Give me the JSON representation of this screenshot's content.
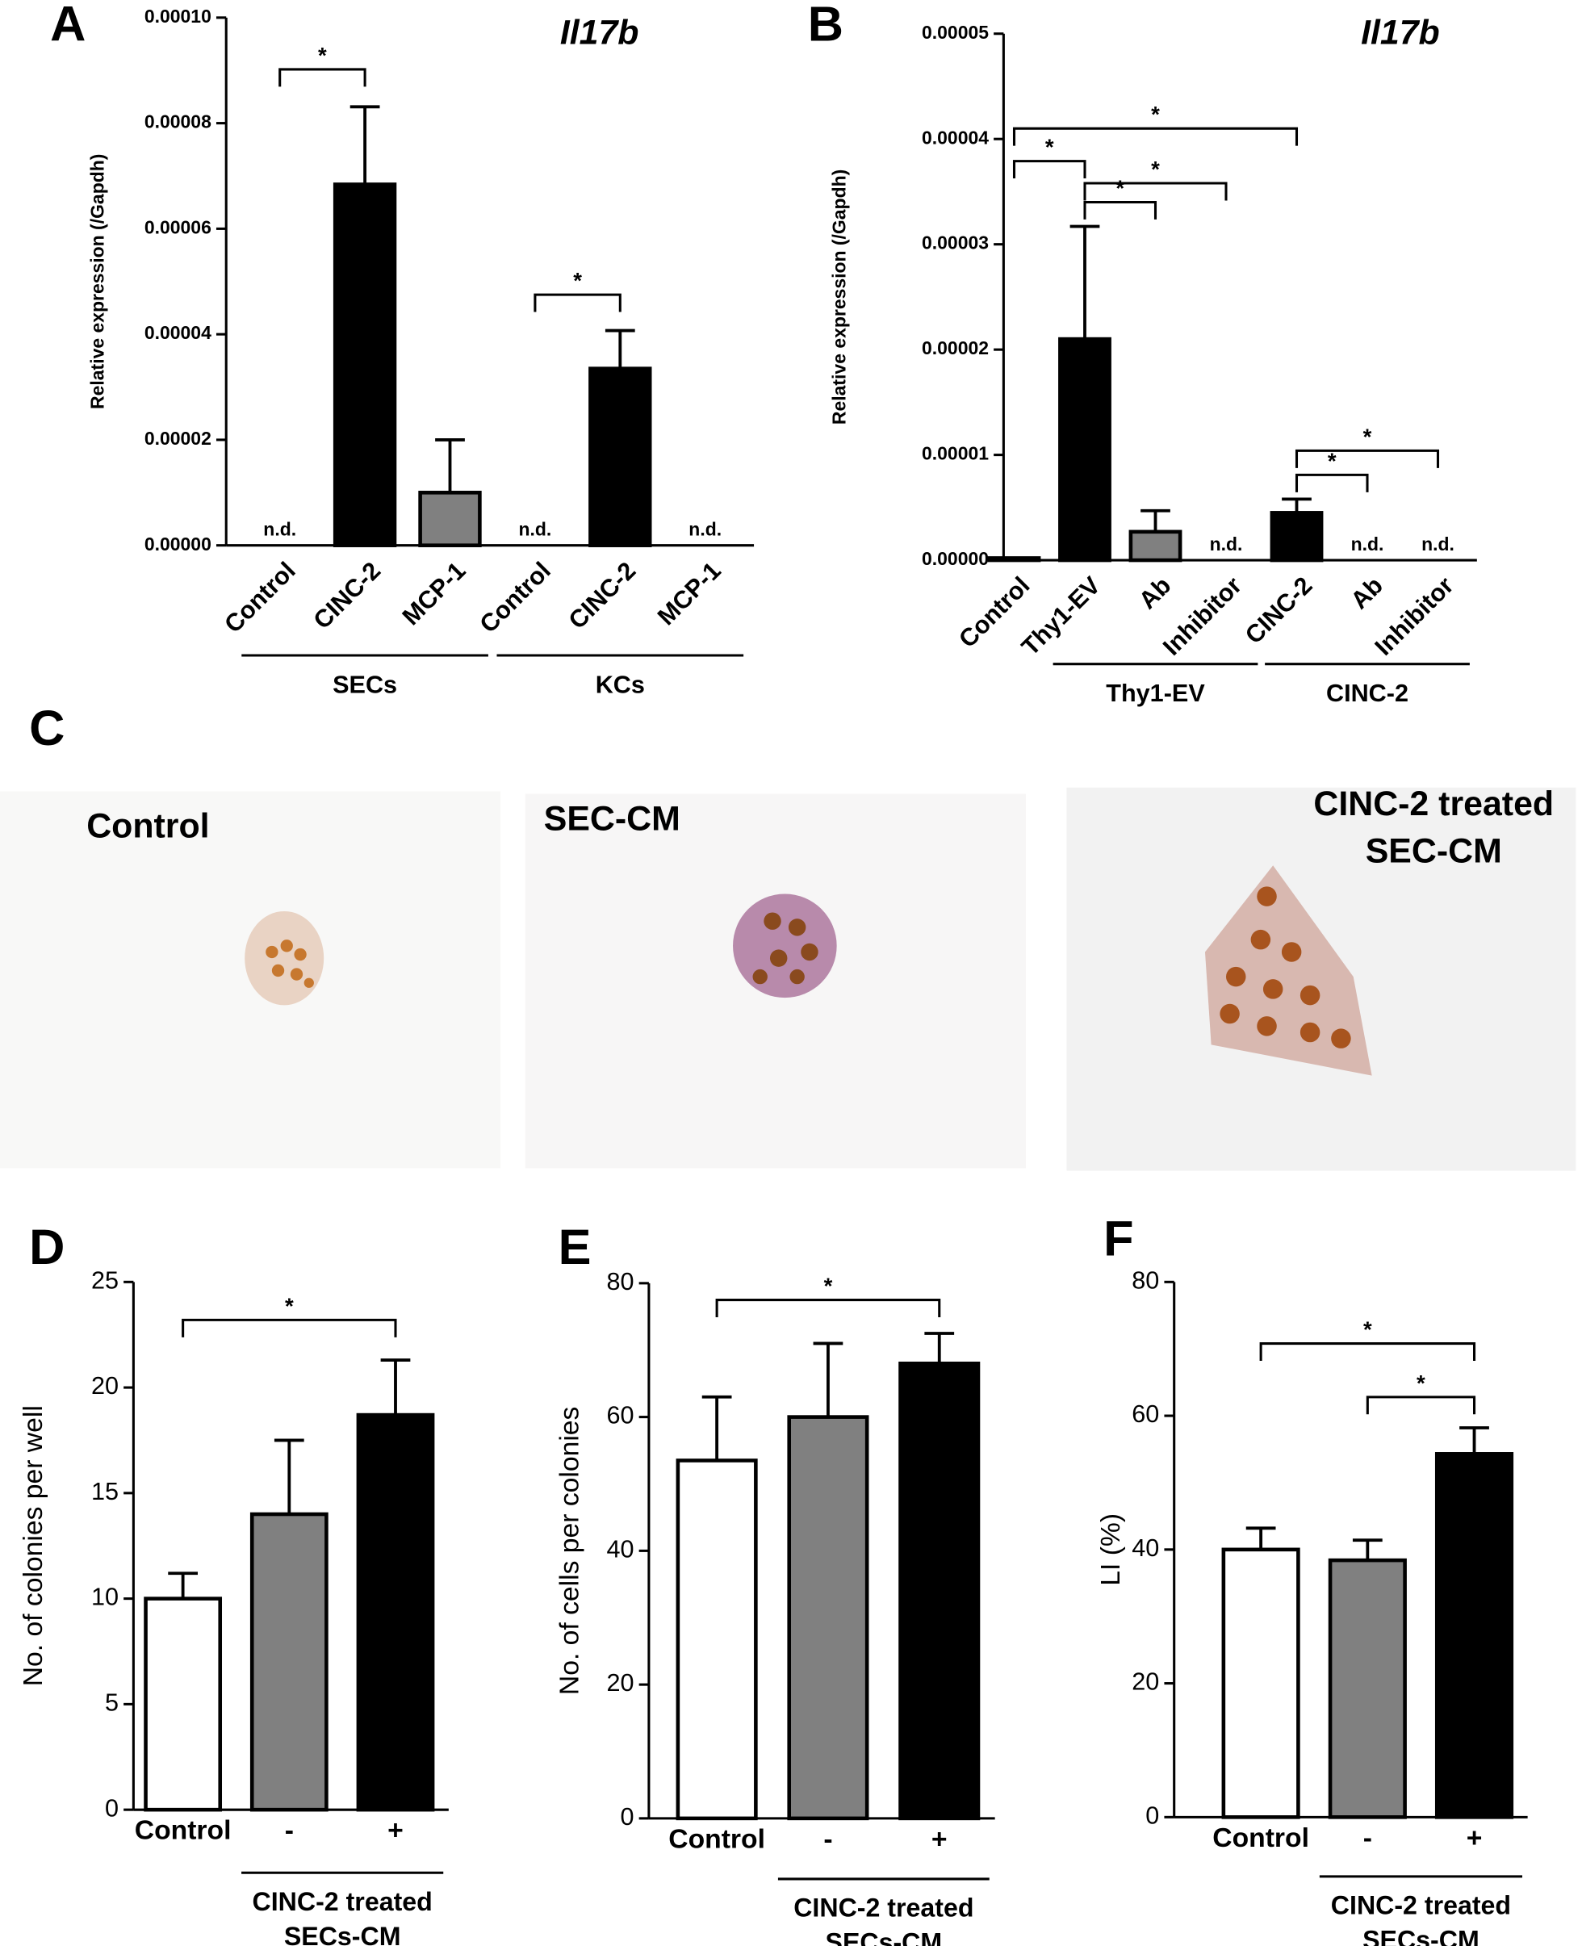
{
  "chart_data": [
    {
      "type": "bar",
      "panel": "A",
      "title": "Il17b",
      "y_label": "Relative expression (/Gapdh)",
      "categories": [
        "Control",
        "CINC-2",
        "MCP-1",
        "Control",
        "CINC-2",
        "MCP-1"
      ],
      "values": [
        null,
        6.84e-05,
        1e-05,
        null,
        3.35e-05,
        null
      ],
      "value_labels": [
        "n.d.",
        null,
        null,
        "n.d.",
        null,
        "n.d."
      ],
      "errors": [
        null,
        1.47e-05,
        1e-05,
        null,
        7.2e-06,
        null
      ],
      "colors": [
        "#000000",
        "#000000",
        "#808080",
        "#000000",
        "#000000",
        "#000000"
      ],
      "ylim": [
        0,
        0.0001
      ],
      "yticks": [
        {
          "value": 0,
          "label": "0.00000"
        },
        {
          "value": 2e-05,
          "label": "0.00002"
        },
        {
          "value": 4e-05,
          "label": "0.00004"
        },
        {
          "value": 6e-05,
          "label": "0.00006"
        },
        {
          "value": 8e-05,
          "label": "0.00008"
        },
        {
          "value": 0.0001,
          "label": "0.00010"
        }
      ],
      "groups": [
        {
          "label": [
            "SECs"
          ],
          "from": 0,
          "to": 2
        },
        {
          "label": [
            "KCs"
          ],
          "from": 3,
          "to": 5
        }
      ],
      "significance": [
        {
          "from": 0,
          "to": 1,
          "y": 9.02e-05,
          "label": "*"
        },
        {
          "from": 3,
          "to": 4,
          "y": 4.75e-05,
          "label": "*"
        }
      ]
    },
    {
      "type": "bar",
      "panel": "B",
      "title": "Il17b",
      "y_label": "Relative expression (/Gapdh)",
      "categories": [
        "Control",
        "Thy1-EV",
        "Ab",
        "Inhibitor",
        "CINC-2",
        "Ab",
        "Inhibitor"
      ],
      "values": [
        2e-07,
        2.1e-05,
        2.7e-06,
        null,
        4.5e-06,
        null,
        null
      ],
      "value_labels": [
        null,
        null,
        null,
        "n.d.",
        null,
        "n.d.",
        "n.d."
      ],
      "errors": [
        null,
        1.07e-05,
        2e-06,
        null,
        1.3e-06,
        null,
        null
      ],
      "colors": [
        "#000000",
        "#000000",
        "#808080",
        "#000000",
        "#000000",
        "#000000",
        "#000000"
      ],
      "ylim": [
        0,
        5e-05
      ],
      "yticks": [
        {
          "value": 0,
          "label": "0.00000"
        },
        {
          "value": 1e-05,
          "label": "0.00001"
        },
        {
          "value": 2e-05,
          "label": "0.00002"
        },
        {
          "value": 3e-05,
          "label": "0.00003"
        },
        {
          "value": 4e-05,
          "label": "0.00004"
        },
        {
          "value": 5e-05,
          "label": "0.00005"
        }
      ],
      "groups": [
        {
          "label": [
            "Thy1-EV"
          ],
          "from": 1,
          "to": 3
        },
        {
          "label": [
            "CINC-2"
          ],
          "from": 4,
          "to": 6
        }
      ],
      "significance": [
        {
          "from": 0,
          "to": 4,
          "y": 4.1e-05,
          "label": "*"
        },
        {
          "from": 0,
          "to": 1,
          "y": 3.79e-05,
          "label": "*"
        },
        {
          "from": 1,
          "to": 3,
          "y": 3.58e-05,
          "label": "*"
        },
        {
          "from": 1,
          "to": 2,
          "y": 3.4e-05,
          "label": "*"
        },
        {
          "from": 4,
          "to": 6,
          "y": 1.04e-05,
          "label": "*"
        },
        {
          "from": 4,
          "to": 5,
          "y": 8.1e-06,
          "label": "*"
        }
      ]
    },
    {
      "type": "bar",
      "panel": "D",
      "y_label": "No. of colonies per well",
      "categories": [
        "Control",
        "-",
        "+"
      ],
      "values": [
        10,
        14,
        18.7
      ],
      "errors": [
        1.2,
        3.5,
        2.6
      ],
      "colors": [
        "#ffffff",
        "#808080",
        "#000000"
      ],
      "ylim": [
        0,
        25
      ],
      "yticks": [
        0,
        5,
        10,
        15,
        20,
        25
      ],
      "groups": [
        {
          "label": [
            "CINC-2 treated",
            "SECs-CM"
          ],
          "from": 1,
          "to": 2
        }
      ],
      "significance": [
        {
          "from": 0,
          "to": 2,
          "y": 23.2,
          "label": "*"
        }
      ]
    },
    {
      "type": "bar",
      "panel": "E",
      "y_label": "No. of cells per colonies",
      "categories": [
        "Control",
        "-",
        "+"
      ],
      "values": [
        53.5,
        60,
        68
      ],
      "errors": [
        9.5,
        11,
        4.5
      ],
      "colors": [
        "#ffffff",
        "#808080",
        "#000000"
      ],
      "ylim": [
        0,
        80
      ],
      "yticks": [
        0,
        20,
        40,
        60,
        80
      ],
      "groups": [
        {
          "label": [
            "CINC-2 treated",
            "SECs-CM"
          ],
          "from": 1,
          "to": 2
        }
      ],
      "significance": [
        {
          "from": 0,
          "to": 2,
          "y": 77.5,
          "label": "*"
        }
      ]
    },
    {
      "type": "bar",
      "panel": "F",
      "y_label": "LI (%)",
      "categories": [
        "Control",
        "-",
        "+"
      ],
      "values": [
        40,
        38.4,
        54.3
      ],
      "errors": [
        3.2,
        3,
        3.9
      ],
      "colors": [
        "#ffffff",
        "#808080",
        "#000000"
      ],
      "ylim": [
        0,
        80
      ],
      "yticks": [
        0,
        20,
        40,
        60,
        80
      ],
      "groups": [
        {
          "label": [
            "CINC-2 treated",
            "SECs-CM"
          ],
          "from": 1,
          "to": 2
        }
      ],
      "significance": [
        {
          "from": 0,
          "to": 2,
          "y": 70.8,
          "label": "*"
        },
        {
          "from": 1,
          "to": 2,
          "y": 62.8,
          "label": "*"
        }
      ]
    }
  ],
  "micrographs": {
    "panel": "C",
    "images": [
      {
        "lines": [
          "Control"
        ]
      },
      {
        "lines": [
          "SEC-CM"
        ]
      },
      {
        "lines": [
          "CINC-2 treated",
          "SEC-CM"
        ]
      }
    ]
  }
}
